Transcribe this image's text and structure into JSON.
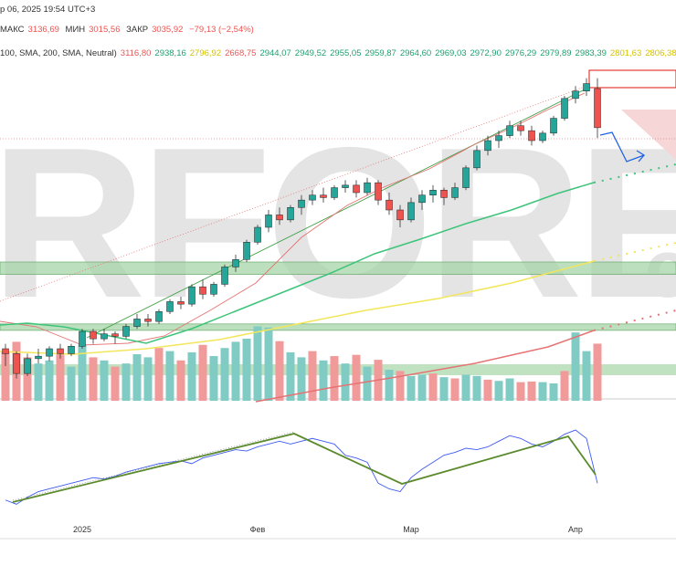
{
  "header": {
    "line1": "р 06, 2025 19:54 UTC+3",
    "line2": {
      "max_label": "МАКС",
      "max": "3136,69",
      "min_label": "МИН",
      "min": "3015,56",
      "close_label": "ЗАКР",
      "close": "3035,92",
      "change": "−79,13 (−2,54%)"
    },
    "line3": {
      "indicator": "100, SMA, 200, SMA, Neutral)",
      "values": [
        {
          "v": "3116,80",
          "color": "#e05a5a"
        },
        {
          "v": "2938,16",
          "color": "#20a070"
        },
        {
          "v": "2796,92",
          "color": "#d4c200"
        },
        {
          "v": "2668,75",
          "color": "#e05a5a"
        },
        {
          "v": "2944,07",
          "color": "#20a070"
        },
        {
          "v": "2949,52",
          "color": "#20a070"
        },
        {
          "v": "2955,05",
          "color": "#20a070"
        },
        {
          "v": "2959,87",
          "color": "#20a070"
        },
        {
          "v": "2964,60",
          "color": "#20a070"
        },
        {
          "v": "2969,03",
          "color": "#20a070"
        },
        {
          "v": "2972,90",
          "color": "#20a070"
        },
        {
          "v": "2976,29",
          "color": "#20a070"
        },
        {
          "v": "2979,89",
          "color": "#20a070"
        },
        {
          "v": "2983,39",
          "color": "#20a070"
        },
        {
          "v": "2801,63",
          "color": "#d4c200"
        },
        {
          "v": "2806,38",
          "color": "#d4c200"
        }
      ]
    }
  },
  "watermark": "RFOREX",
  "watermark_tail": ".c",
  "colors": {
    "up": "#26a69a",
    "down": "#ef5350",
    "vol_up": "#80cbc4",
    "vol_down": "#f19a9a"
  },
  "chart_data": {
    "type": "candlestick",
    "x_tick_labels": [
      {
        "label": "2025",
        "i": 7
      },
      {
        "label": "Фев",
        "i": 23
      },
      {
        "label": "Мар",
        "i": 37
      },
      {
        "label": "Апр",
        "i": 52
      }
    ],
    "candles": [
      [
        2590,
        2600,
        2555,
        2580
      ],
      [
        2580,
        2585,
        2530,
        2540
      ],
      [
        2540,
        2580,
        2535,
        2570
      ],
      [
        2570,
        2590,
        2560,
        2575
      ],
      [
        2575,
        2595,
        2565,
        2590
      ],
      [
        2590,
        2600,
        2570,
        2580
      ],
      [
        2580,
        2600,
        2575,
        2595
      ],
      [
        2595,
        2630,
        2590,
        2625
      ],
      [
        2625,
        2630,
        2600,
        2610
      ],
      [
        2610,
        2630,
        2605,
        2620
      ],
      [
        2620,
        2625,
        2600,
        2615
      ],
      [
        2615,
        2640,
        2610,
        2635
      ],
      [
        2635,
        2660,
        2630,
        2650
      ],
      [
        2650,
        2660,
        2635,
        2645
      ],
      [
        2645,
        2670,
        2640,
        2665
      ],
      [
        2665,
        2690,
        2660,
        2685
      ],
      [
        2685,
        2695,
        2670,
        2680
      ],
      [
        2680,
        2720,
        2675,
        2715
      ],
      [
        2715,
        2730,
        2690,
        2700
      ],
      [
        2700,
        2725,
        2695,
        2720
      ],
      [
        2720,
        2760,
        2715,
        2755
      ],
      [
        2755,
        2780,
        2745,
        2770
      ],
      [
        2770,
        2810,
        2765,
        2805
      ],
      [
        2805,
        2840,
        2800,
        2835
      ],
      [
        2835,
        2870,
        2825,
        2860
      ],
      [
        2860,
        2875,
        2840,
        2850
      ],
      [
        2850,
        2880,
        2845,
        2875
      ],
      [
        2875,
        2900,
        2860,
        2890
      ],
      [
        2890,
        2910,
        2880,
        2900
      ],
      [
        2900,
        2915,
        2885,
        2895
      ],
      [
        2895,
        2920,
        2890,
        2915
      ],
      [
        2915,
        2930,
        2905,
        2920
      ],
      [
        2920,
        2930,
        2895,
        2905
      ],
      [
        2905,
        2935,
        2900,
        2925
      ],
      [
        2925,
        2930,
        2880,
        2890
      ],
      [
        2890,
        2905,
        2860,
        2870
      ],
      [
        2870,
        2880,
        2835,
        2850
      ],
      [
        2850,
        2895,
        2845,
        2885
      ],
      [
        2885,
        2910,
        2870,
        2900
      ],
      [
        2900,
        2920,
        2885,
        2910
      ],
      [
        2910,
        2915,
        2880,
        2895
      ],
      [
        2895,
        2925,
        2890,
        2915
      ],
      [
        2915,
        2960,
        2910,
        2955
      ],
      [
        2955,
        3000,
        2950,
        2990
      ],
      [
        2990,
        3020,
        2980,
        3010
      ],
      [
        3010,
        3030,
        2995,
        3020
      ],
      [
        3020,
        3050,
        3015,
        3040
      ],
      [
        3040,
        3050,
        3020,
        3030
      ],
      [
        3030,
        3040,
        3000,
        3010
      ],
      [
        3010,
        3030,
        3005,
        3025
      ],
      [
        3025,
        3060,
        3020,
        3055
      ],
      [
        3055,
        3100,
        3050,
        3095
      ],
      [
        3095,
        3120,
        3085,
        3110
      ],
      [
        3110,
        3136,
        3100,
        3125
      ],
      [
        3115,
        3136,
        3015,
        3036
      ]
    ],
    "volume": [
      [
        80,
        0
      ],
      [
        95,
        0
      ],
      [
        70,
        0
      ],
      [
        60,
        1
      ],
      [
        65,
        1
      ],
      [
        75,
        0
      ],
      [
        55,
        1
      ],
      [
        90,
        1
      ],
      [
        70,
        0
      ],
      [
        65,
        1
      ],
      [
        55,
        0
      ],
      [
        60,
        1
      ],
      [
        75,
        1
      ],
      [
        70,
        1
      ],
      [
        85,
        0
      ],
      [
        80,
        1
      ],
      [
        65,
        0
      ],
      [
        78,
        1
      ],
      [
        90,
        0
      ],
      [
        72,
        1
      ],
      [
        85,
        1
      ],
      [
        95,
        1
      ],
      [
        100,
        1
      ],
      [
        120,
        1
      ],
      [
        118,
        1
      ],
      [
        96,
        0
      ],
      [
        78,
        1
      ],
      [
        70,
        1
      ],
      [
        80,
        0
      ],
      [
        65,
        1
      ],
      [
        72,
        0
      ],
      [
        60,
        1
      ],
      [
        74,
        0
      ],
      [
        55,
        1
      ],
      [
        66,
        0
      ],
      [
        50,
        1
      ],
      [
        48,
        0
      ],
      [
        40,
        1
      ],
      [
        42,
        1
      ],
      [
        44,
        0
      ],
      [
        38,
        1
      ],
      [
        36,
        0
      ],
      [
        42,
        1
      ],
      [
        40,
        1
      ],
      [
        34,
        0
      ],
      [
        32,
        1
      ],
      [
        36,
        1
      ],
      [
        30,
        0
      ],
      [
        31,
        0
      ],
      [
        30,
        1
      ],
      [
        28,
        1
      ],
      [
        48,
        0
      ],
      [
        110,
        1
      ],
      [
        80,
        1
      ],
      [
        92,
        0
      ]
    ],
    "rsi": [
      28,
      25,
      30,
      34,
      36,
      38,
      40,
      42,
      44,
      43,
      45,
      48,
      50,
      52,
      54,
      55,
      56,
      54,
      58,
      60,
      62,
      64,
      63,
      66,
      68,
      70,
      68,
      70,
      72,
      70,
      68,
      60,
      58,
      55,
      40,
      36,
      34,
      44,
      50,
      55,
      60,
      62,
      65,
      64,
      66,
      70,
      74,
      72,
      68,
      66,
      70,
      75,
      78,
      72,
      40
    ]
  }
}
